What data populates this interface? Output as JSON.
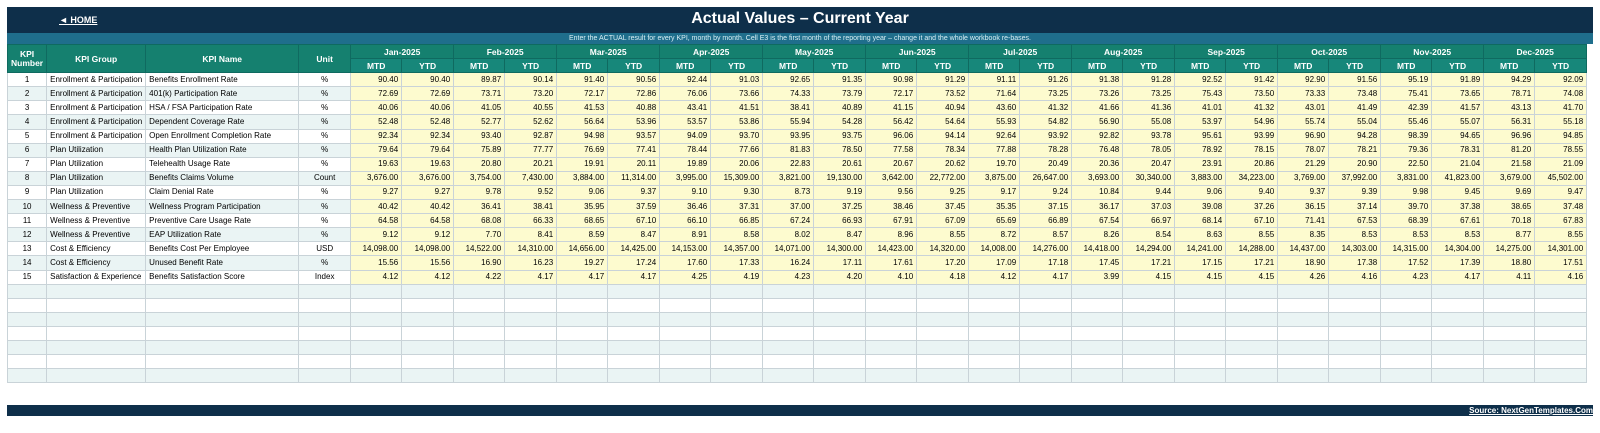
{
  "header": {
    "home_label": "◄ HOME",
    "title": "Actual Values  –  Current Year",
    "instruction": "Enter the ACTUAL result for every KPI, month by month. Cell E3 is the first month of the reporting year – change it and the whole workbook re-bases."
  },
  "columns": {
    "kpi_number": "KPI Number",
    "kpi_group": "KPI Group",
    "kpi_name": "KPI Name",
    "unit": "Unit",
    "mtd": "MTD",
    "ytd": "YTD"
  },
  "months": [
    "Jan-2025",
    "Feb-2025",
    "Mar-2025",
    "Apr-2025",
    "May-2025",
    "Jun-2025",
    "Jul-2025",
    "Aug-2025",
    "Sep-2025",
    "Oct-2025",
    "Nov-2025",
    "Dec-2025"
  ],
  "rows": [
    {
      "num": "1",
      "group": "Enrollment & Participation",
      "name": "Benefits Enrollment Rate",
      "unit": "%",
      "values": [
        "90.40",
        "90.40",
        "89.87",
        "90.14",
        "91.40",
        "90.56",
        "92.44",
        "91.03",
        "92.65",
        "91.35",
        "90.98",
        "91.29",
        "91.11",
        "91.26",
        "91.38",
        "91.28",
        "92.52",
        "91.42",
        "92.90",
        "91.56",
        "95.19",
        "91.89",
        "94.29",
        "92.09"
      ]
    },
    {
      "num": "2",
      "group": "Enrollment & Participation",
      "name": "401(k) Participation Rate",
      "unit": "%",
      "values": [
        "72.69",
        "72.69",
        "73.71",
        "73.20",
        "72.17",
        "72.86",
        "76.06",
        "73.66",
        "74.33",
        "73.79",
        "72.17",
        "73.52",
        "71.64",
        "73.25",
        "73.26",
        "73.25",
        "75.43",
        "73.50",
        "73.33",
        "73.48",
        "75.41",
        "73.65",
        "78.71",
        "74.08"
      ]
    },
    {
      "num": "3",
      "group": "Enrollment & Participation",
      "name": "HSA / FSA Participation Rate",
      "unit": "%",
      "values": [
        "40.06",
        "40.06",
        "41.05",
        "40.55",
        "41.53",
        "40.88",
        "43.41",
        "41.51",
        "38.41",
        "40.89",
        "41.15",
        "40.94",
        "43.60",
        "41.32",
        "41.66",
        "41.36",
        "41.01",
        "41.32",
        "43.01",
        "41.49",
        "42.39",
        "41.57",
        "43.13",
        "41.70"
      ]
    },
    {
      "num": "4",
      "group": "Enrollment & Participation",
      "name": "Dependent Coverage Rate",
      "unit": "%",
      "values": [
        "52.48",
        "52.48",
        "52.77",
        "52.62",
        "56.64",
        "53.96",
        "53.57",
        "53.86",
        "55.94",
        "54.28",
        "56.42",
        "54.64",
        "55.93",
        "54.82",
        "56.90",
        "55.08",
        "53.97",
        "54.96",
        "55.74",
        "55.04",
        "55.46",
        "55.07",
        "56.31",
        "55.18"
      ]
    },
    {
      "num": "5",
      "group": "Enrollment & Participation",
      "name": "Open Enrollment Completion Rate",
      "unit": "%",
      "values": [
        "92.34",
        "92.34",
        "93.40",
        "92.87",
        "94.98",
        "93.57",
        "94.09",
        "93.70",
        "93.95",
        "93.75",
        "96.06",
        "94.14",
        "92.64",
        "93.92",
        "92.82",
        "93.78",
        "95.61",
        "93.99",
        "96.90",
        "94.28",
        "98.39",
        "94.65",
        "96.96",
        "94.85"
      ]
    },
    {
      "num": "6",
      "group": "Plan Utilization",
      "name": "Health Plan Utilization Rate",
      "unit": "%",
      "values": [
        "79.64",
        "79.64",
        "75.89",
        "77.77",
        "76.69",
        "77.41",
        "78.44",
        "77.66",
        "81.83",
        "78.50",
        "77.58",
        "78.34",
        "77.88",
        "78.28",
        "76.48",
        "78.05",
        "78.92",
        "78.15",
        "78.07",
        "78.21",
        "79.36",
        "78.31",
        "81.20",
        "78.55"
      ]
    },
    {
      "num": "7",
      "group": "Plan Utilization",
      "name": "Telehealth Usage Rate",
      "unit": "%",
      "values": [
        "19.63",
        "19.63",
        "20.80",
        "20.21",
        "19.91",
        "20.11",
        "19.89",
        "20.06",
        "22.83",
        "20.61",
        "20.67",
        "20.62",
        "19.70",
        "20.49",
        "20.36",
        "20.47",
        "23.91",
        "20.86",
        "21.29",
        "20.90",
        "22.50",
        "21.04",
        "21.58",
        "21.09"
      ]
    },
    {
      "num": "8",
      "group": "Plan Utilization",
      "name": "Benefits Claims Volume",
      "unit": "Count",
      "values": [
        "3,676.00",
        "3,676.00",
        "3,754.00",
        "7,430.00",
        "3,884.00",
        "11,314.00",
        "3,995.00",
        "15,309.00",
        "3,821.00",
        "19,130.00",
        "3,642.00",
        "22,772.00",
        "3,875.00",
        "26,647.00",
        "3,693.00",
        "30,340.00",
        "3,883.00",
        "34,223.00",
        "3,769.00",
        "37,992.00",
        "3,831.00",
        "41,823.00",
        "3,679.00",
        "45,502.00"
      ]
    },
    {
      "num": "9",
      "group": "Plan Utilization",
      "name": "Claim Denial Rate",
      "unit": "%",
      "values": [
        "9.27",
        "9.27",
        "9.78",
        "9.52",
        "9.06",
        "9.37",
        "9.10",
        "9.30",
        "8.73",
        "9.19",
        "9.56",
        "9.25",
        "9.17",
        "9.24",
        "10.84",
        "9.44",
        "9.06",
        "9.40",
        "9.37",
        "9.39",
        "9.98",
        "9.45",
        "9.69",
        "9.47"
      ]
    },
    {
      "num": "10",
      "group": "Wellness & Preventive",
      "name": "Wellness Program Participation",
      "unit": "%",
      "values": [
        "40.42",
        "40.42",
        "36.41",
        "38.41",
        "35.95",
        "37.59",
        "36.46",
        "37.31",
        "37.00",
        "37.25",
        "38.46",
        "37.45",
        "35.35",
        "37.15",
        "36.17",
        "37.03",
        "39.08",
        "37.26",
        "36.15",
        "37.14",
        "39.70",
        "37.38",
        "38.65",
        "37.48"
      ]
    },
    {
      "num": "11",
      "group": "Wellness & Preventive",
      "name": "Preventive Care Usage Rate",
      "unit": "%",
      "values": [
        "64.58",
        "64.58",
        "68.08",
        "66.33",
        "68.65",
        "67.10",
        "66.10",
        "66.85",
        "67.24",
        "66.93",
        "67.91",
        "67.09",
        "65.69",
        "66.89",
        "67.54",
        "66.97",
        "68.14",
        "67.10",
        "71.41",
        "67.53",
        "68.39",
        "67.61",
        "70.18",
        "67.83"
      ]
    },
    {
      "num": "12",
      "group": "Wellness & Preventive",
      "name": "EAP Utilization Rate",
      "unit": "%",
      "values": [
        "9.12",
        "9.12",
        "7.70",
        "8.41",
        "8.59",
        "8.47",
        "8.91",
        "8.58",
        "8.02",
        "8.47",
        "8.96",
        "8.55",
        "8.72",
        "8.57",
        "8.26",
        "8.54",
        "8.63",
        "8.55",
        "8.35",
        "8.53",
        "8.53",
        "8.53",
        "8.77",
        "8.55"
      ]
    },
    {
      "num": "13",
      "group": "Cost & Efficiency",
      "name": "Benefits Cost Per Employee",
      "unit": "USD",
      "values": [
        "14,098.00",
        "14,098.00",
        "14,522.00",
        "14,310.00",
        "14,656.00",
        "14,425.00",
        "14,153.00",
        "14,357.00",
        "14,071.00",
        "14,300.00",
        "14,423.00",
        "14,320.00",
        "14,008.00",
        "14,276.00",
        "14,418.00",
        "14,294.00",
        "14,241.00",
        "14,288.00",
        "14,437.00",
        "14,303.00",
        "14,315.00",
        "14,304.00",
        "14,275.00",
        "14,301.00"
      ]
    },
    {
      "num": "14",
      "group": "Cost & Efficiency",
      "name": "Unused Benefit Rate",
      "unit": "%",
      "values": [
        "15.56",
        "15.56",
        "16.90",
        "16.23",
        "19.27",
        "17.24",
        "17.60",
        "17.33",
        "16.24",
        "17.11",
        "17.61",
        "17.20",
        "17.09",
        "17.18",
        "17.45",
        "17.21",
        "17.15",
        "17.21",
        "18.90",
        "17.38",
        "17.52",
        "17.39",
        "18.80",
        "17.51"
      ]
    },
    {
      "num": "15",
      "group": "Satisfaction & Experience",
      "name": "Benefits Satisfaction Score",
      "unit": "Index",
      "values": [
        "4.12",
        "4.12",
        "4.22",
        "4.17",
        "4.17",
        "4.17",
        "4.25",
        "4.19",
        "4.23",
        "4.20",
        "4.10",
        "4.18",
        "4.12",
        "4.17",
        "3.99",
        "4.15",
        "4.15",
        "4.15",
        "4.26",
        "4.16",
        "4.23",
        "4.17",
        "4.11",
        "4.16"
      ]
    }
  ],
  "empty_rows": 7,
  "footer": {
    "source": "Source: NextGenTemplates.Com"
  }
}
